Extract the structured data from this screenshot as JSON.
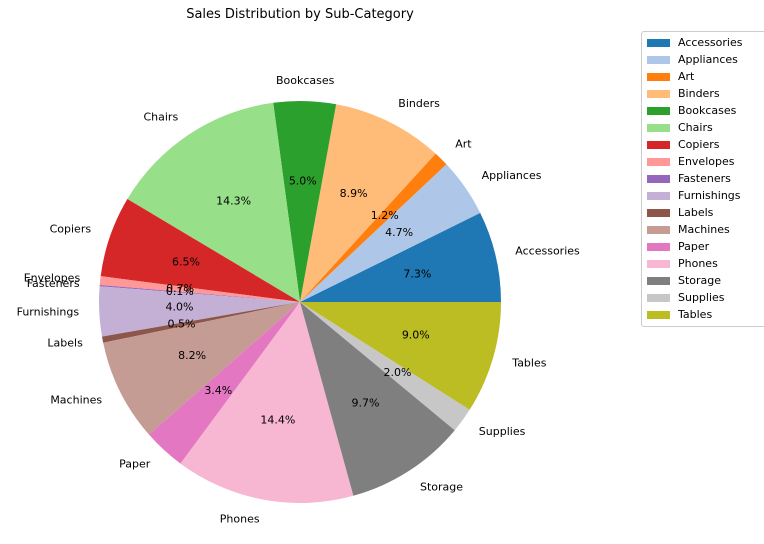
{
  "chart_data": {
    "type": "pie",
    "title": "Sales Distribution by Sub-Category",
    "categories": [
      "Accessories",
      "Appliances",
      "Art",
      "Binders",
      "Bookcases",
      "Chairs",
      "Copiers",
      "Envelopes",
      "Fasteners",
      "Furnishings",
      "Labels",
      "Machines",
      "Paper",
      "Phones",
      "Storage",
      "Supplies",
      "Tables"
    ],
    "values": [
      7.3,
      4.7,
      1.2,
      8.9,
      5.0,
      14.3,
      6.5,
      0.7,
      0.1,
      4.0,
      0.5,
      8.2,
      3.4,
      14.4,
      9.7,
      2.0,
      9.0
    ],
    "value_labels": [
      "7.3%",
      "4.7%",
      "1.2%",
      "8.9%",
      "5.0%",
      "14.3%",
      "6.5%",
      "0.7%",
      "0.1%",
      "4.0%",
      "0.5%",
      "8.2%",
      "3.4%",
      "14.4%",
      "9.7%",
      "2.0%",
      "9.0%"
    ],
    "colors": [
      "#1f77b4",
      "#aec7e8",
      "#ff7f0e",
      "#ffbb78",
      "#2ca02c",
      "#98df8a",
      "#d62728",
      "#ff9896",
      "#9467bd",
      "#c5b0d5",
      "#8c564b",
      "#c49c94",
      "#e377c2",
      "#f7b6d2",
      "#7f7f7f",
      "#c7c7c7",
      "#bcbd22"
    ],
    "start_angle_deg": 0,
    "direction": "counterclockwise",
    "legend_position": "upper-right"
  }
}
